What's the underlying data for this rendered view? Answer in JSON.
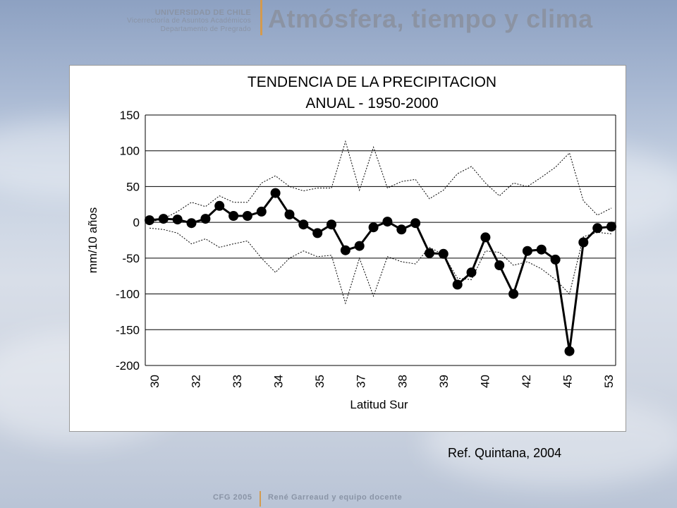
{
  "header": {
    "university": "UNIVERSIDAD DE CHILE",
    "line2": "Vicerrectoría de Asuntos Académicos",
    "line3": "Departamento de Pregrado",
    "title": "Atmósfera, tiempo y clima"
  },
  "reference": "Ref. Quintana, 2004",
  "footer": {
    "left": "CFG 2005",
    "right": "René Garreaud y equipo docente"
  },
  "chart_data": {
    "type": "line",
    "title_line1": "TENDENCIA DE LA PRECIPITACION",
    "title_line2": "ANUAL - 1950-2000",
    "xlabel": "Latitud Sur",
    "ylabel": "mm/10 años",
    "ylim": [
      -200,
      150
    ],
    "yticks": [
      150,
      100,
      50,
      0,
      -50,
      -100,
      -150,
      -200
    ],
    "grid": true,
    "x_tick_labels": [
      "30",
      "32",
      "33",
      "34",
      "35",
      "37",
      "38",
      "39",
      "40",
      "42",
      "45",
      "53"
    ],
    "series": [
      {
        "values": [
          3,
          5,
          4,
          -1,
          5,
          23,
          9,
          9,
          15,
          41,
          11,
          -3,
          -15,
          -3,
          -39,
          -33,
          -7,
          1,
          -10,
          -1,
          -43,
          -44,
          -87,
          -70,
          -21,
          -60,
          -100,
          -40,
          -38,
          -52,
          -180,
          -28,
          -8,
          -6
        ]
      },
      {
        "values": [
          0,
          5,
          15,
          28,
          22,
          37,
          28,
          28,
          55,
          65,
          50,
          44,
          48,
          48,
          113,
          45,
          105,
          48,
          57,
          60,
          33,
          45,
          68,
          78,
          55,
          37,
          55,
          50,
          63,
          77,
          97,
          30,
          10,
          20
        ]
      },
      {
        "values": [
          -8,
          -10,
          -15,
          -30,
          -23,
          -35,
          -30,
          -26,
          -50,
          -70,
          -50,
          -40,
          -48,
          -46,
          -113,
          -50,
          -103,
          -48,
          -55,
          -58,
          -35,
          -45,
          -78,
          -80,
          -40,
          -42,
          -60,
          -55,
          -65,
          -80,
          -100,
          -20,
          -14,
          -16
        ]
      }
    ]
  }
}
